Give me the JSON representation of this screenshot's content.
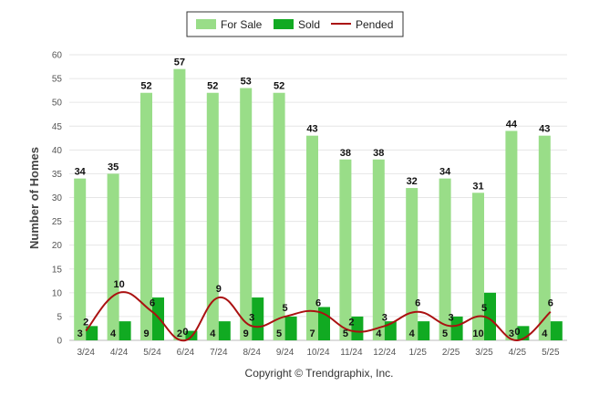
{
  "chart_data": {
    "type": "bar",
    "categories": [
      "3/24",
      "4/24",
      "5/24",
      "6/24",
      "7/24",
      "8/24",
      "9/24",
      "10/24",
      "11/24",
      "12/24",
      "1/25",
      "2/25",
      "3/25",
      "4/25",
      "5/25"
    ],
    "series": [
      {
        "name": "For Sale",
        "type": "bar",
        "color": "#99DD88",
        "values": [
          34,
          35,
          52,
          57,
          52,
          53,
          52,
          43,
          38,
          38,
          32,
          34,
          31,
          44,
          43
        ]
      },
      {
        "name": "Sold",
        "type": "bar",
        "color": "#11AA22",
        "values": [
          3,
          4,
          9,
          2,
          4,
          9,
          5,
          7,
          5,
          4,
          4,
          5,
          10,
          3,
          4
        ]
      },
      {
        "name": "Pended",
        "type": "line",
        "color": "#AA1111",
        "values": [
          2,
          10,
          6,
          0,
          9,
          3,
          5,
          6,
          2,
          3,
          6,
          3,
          5,
          0,
          6
        ]
      }
    ],
    "ylabel": "Number of Homes",
    "xlabel": "",
    "ylim": [
      0,
      60
    ],
    "yticks": [
      0,
      5,
      10,
      15,
      20,
      25,
      30,
      35,
      40,
      45,
      50,
      55,
      60
    ],
    "grid": true,
    "legend_position": "top-center"
  },
  "footer": {
    "copyright": "Copyright © Trendgraphix, Inc."
  }
}
